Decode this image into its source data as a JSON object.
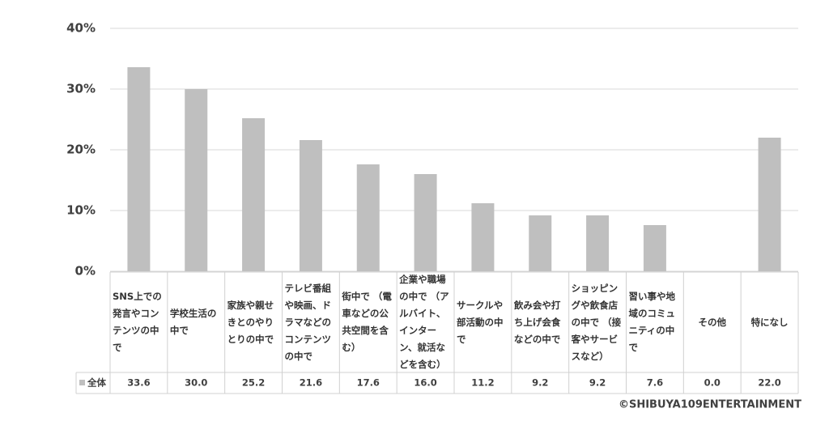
{
  "chart_data": {
    "type": "bar",
    "categories": [
      "SNS上での発言やコンテンツの中で",
      "学校生活の中で",
      "家族や親せきとのやりとりの中で",
      "テレビ番組や映画、ドラマなどのコンテンツの中で",
      "街中で （電車などの公共空間を含む）",
      "企業や職場の中で （アルバイト、インターン、就活などを含む）",
      "サークルや部活動の中で",
      "飲み会や打ち上げ会食などの中で",
      "ショッピングや飲食店の中で （接客やサービスなど）",
      "習い事や地域のコミュニティの中で",
      "その他",
      "特になし"
    ],
    "series": [
      {
        "name": "全体",
        "color": "#bfbfbf",
        "values": [
          33.6,
          30.0,
          25.2,
          21.6,
          17.6,
          16.0,
          11.2,
          9.2,
          9.2,
          7.6,
          0.0,
          22.0
        ],
        "value_labels": [
          "33.6",
          "30.0",
          "25.2",
          "21.6",
          "17.6",
          "16.0",
          "11.2",
          "9.2",
          "9.2",
          "7.6",
          "0.0",
          "22.0"
        ]
      }
    ],
    "ylim": [
      0,
      40
    ],
    "yticks": [
      {
        "value": 0,
        "label": "0%"
      },
      {
        "value": 10,
        "label": "10%"
      },
      {
        "value": 20,
        "label": "20%"
      },
      {
        "value": 30,
        "label": "30%"
      },
      {
        "value": 40,
        "label": "40%"
      }
    ],
    "grid": true,
    "credit": "©SHIBUYA109ENTERTAINMENT"
  }
}
